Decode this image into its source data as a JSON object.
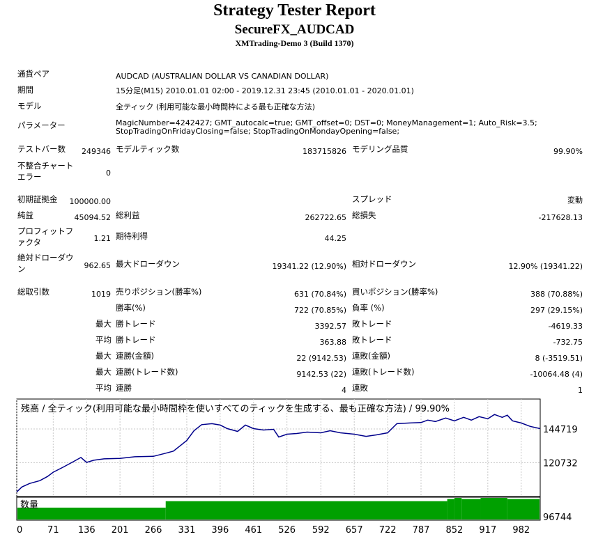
{
  "header": {
    "title": "Strategy Tester Report",
    "ea_name": "SecureFX_AUDCAD",
    "account": "XMTrading-Demo 3 (Build 1370)"
  },
  "info": {
    "symbol_label": "通貨ペア",
    "symbol_value": "AUDCAD (AUSTRALIAN DOLLAR VS CANADIAN DOLLAR)",
    "period_label": "期間",
    "period_value": "15分足(M15) 2010.01.01 02:00 - 2019.12.31 23:45 (2010.01.01 - 2020.01.01)",
    "model_label": "モデル",
    "model_value": "全ティック (利用可能な最小時間枠による最も正確な方法)",
    "params_label": "パラメーター",
    "params_line1": "MagicNumber=4242427; GMT_autocalc=true; GMT_offset=0; DST=0; MoneyManagement=1; Auto_Risk=3.5;",
    "params_line2": "StopTradingOnFridayClosing=false; StopTradingOnMondayOpening=false;"
  },
  "stats": {
    "bars_label": "テストバー数",
    "bars_value": "249346",
    "ticks_label": "モデルティック数",
    "ticks_value": "183715826",
    "quality_label": "モデリング品質",
    "quality_value": "99.90%",
    "mismatch_label_1": "不整合チャート",
    "mismatch_label_2": "エラー",
    "mismatch_value": "0",
    "deposit_label": "初期証拠金",
    "deposit_value": "100000.00",
    "spread_label": "スプレッド",
    "spread_value": "変動",
    "net_label": "純益",
    "net_value": "45094.52",
    "gross_profit_label": "総利益",
    "gross_profit_value": "262722.65",
    "gross_loss_label": "総損失",
    "gross_loss_value": "-217628.13",
    "pf_label_1": "プロフィットフ",
    "pf_label_2": "ァクタ",
    "pf_value": "1.21",
    "expected_label": "期待利得",
    "expected_value": "44.25",
    "abs_dd_label_1": "絶対ドローダウ",
    "abs_dd_label_2": "ン",
    "abs_dd_value": "962.65",
    "max_dd_label": "最大ドローダウン",
    "max_dd_value": "19341.22 (12.90%)",
    "rel_dd_label": "相対ドローダウン",
    "rel_dd_value": "12.90% (19341.22)",
    "trades_label": "総取引数",
    "trades_value": "1019",
    "short_label": "売りポジション(勝率%)",
    "short_value": "631 (70.84%)",
    "long_label": "買いポジション(勝率%)",
    "long_value": "388 (70.88%)",
    "win_label": "勝率(%)",
    "win_value": "722 (70.85%)",
    "loss_label": "負率 (%)",
    "loss_value": "297 (29.15%)",
    "max_label": "最大",
    "avg_label": "平均",
    "largest_win_label": "勝トレード",
    "largest_win_value": "3392.57",
    "largest_loss_label": "敗トレード",
    "largest_loss_value": "-4619.33",
    "avg_win_label": "勝トレード",
    "avg_win_value": "363.88",
    "avg_loss_label": "敗トレード",
    "avg_loss_value": "-732.75",
    "cons_wins_money_label": "連勝(金額)",
    "cons_wins_money_value": "22 (9142.53)",
    "cons_losses_money_label": "連敗(金額)",
    "cons_losses_money_value": "8 (-3519.51)",
    "cons_wins_count_label": "連勝(トレード数)",
    "cons_wins_count_value": "9142.53 (22)",
    "cons_losses_count_label": "連敗(トレード数)",
    "cons_losses_count_value": "-10064.48 (4)",
    "avg_cons_wins_label": "連勝",
    "avg_cons_wins_value": "4",
    "avg_cons_losses_label": "連敗",
    "avg_cons_losses_value": "1"
  },
  "chart_data": {
    "type": "line",
    "title": "残高 / 全ティック(利用可能な最小時間枠を使いすべてのティックを生成する、最も正確な方法) / 99.90%",
    "volume_label": "数量",
    "line_color": "#00008b",
    "volume_color": "#00a000",
    "grid": true,
    "y_ticks": [
      144719,
      120732,
      96744
    ],
    "x_ticks": [
      0,
      71,
      136,
      201,
      266,
      331,
      396,
      461,
      526,
      592,
      657,
      722,
      787,
      852,
      917,
      982
    ],
    "xlim": [
      0,
      1019
    ],
    "ylim": [
      96744,
      166000
    ],
    "x": [
      0,
      10,
      25,
      45,
      60,
      71,
      90,
      110,
      125,
      136,
      150,
      170,
      201,
      230,
      266,
      290,
      305,
      331,
      345,
      360,
      380,
      396,
      410,
      430,
      445,
      461,
      480,
      500,
      510,
      526,
      545,
      565,
      592,
      610,
      630,
      657,
      680,
      700,
      722,
      740,
      765,
      787,
      800,
      815,
      835,
      852,
      870,
      885,
      900,
      917,
      930,
      945,
      955,
      965,
      982,
      1000,
      1019
    ],
    "y": [
      100000,
      103500,
      106000,
      108000,
      111000,
      114000,
      117500,
      121500,
      124500,
      121000,
      122500,
      123500,
      123800,
      125000,
      125300,
      127500,
      129000,
      136500,
      143500,
      147800,
      148500,
      147500,
      145000,
      143000,
      147500,
      145000,
      144000,
      144500,
      139000,
      141000,
      141500,
      142500,
      142000,
      143500,
      142000,
      141000,
      139500,
      140500,
      142000,
      148500,
      149000,
      149300,
      151000,
      150000,
      152500,
      150500,
      153000,
      151000,
      153500,
      152000,
      155000,
      153000,
      154500,
      150500,
      149000,
      146500,
      145000
    ],
    "volume": {
      "segments": [
        [
          0,
          0.55
        ],
        [
          290,
          0.85
        ],
        [
          838,
          0.95
        ],
        [
          852,
          1.0
        ],
        [
          866,
          0.95
        ],
        [
          903,
          1.0
        ],
        [
          955,
          0.95
        ]
      ]
    }
  }
}
